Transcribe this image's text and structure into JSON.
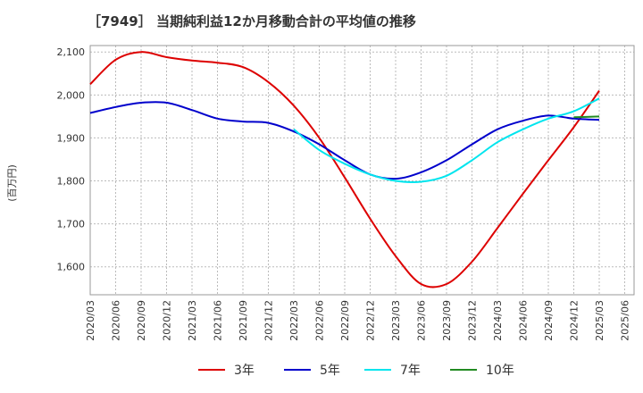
{
  "chart_data": {
    "type": "line",
    "title": "［7949］ 当期純利益12か月移動合計の平均値の推移",
    "ylabel": "(百万円)",
    "xlabel": "",
    "ylim": [
      1535,
      2115
    ],
    "yticks": [
      1600,
      1700,
      1800,
      1900,
      2000,
      2100
    ],
    "ytick_labels": [
      "1,600",
      "1,700",
      "1,800",
      "1,900",
      "2,000",
      "2,100"
    ],
    "x_ticks": [
      "2020/03",
      "2020/06",
      "2020/09",
      "2020/12",
      "2021/03",
      "2021/06",
      "2021/09",
      "2021/12",
      "2022/03",
      "2022/06",
      "2022/09",
      "2022/12",
      "2023/03",
      "2023/06",
      "2023/09",
      "2023/12",
      "2024/03",
      "2024/06",
      "2024/09",
      "2024/12",
      "2025/03",
      "2025/06"
    ],
    "grid": true,
    "legend_position": "bottom",
    "series": [
      {
        "name": "3年",
        "color": "#dd0000",
        "x": [
          "2020/03",
          "2020/06",
          "2020/09",
          "2020/12",
          "2021/03",
          "2021/06",
          "2021/09",
          "2021/12",
          "2022/03",
          "2022/06",
          "2022/09",
          "2022/12",
          "2023/03",
          "2023/06",
          "2023/09",
          "2023/12",
          "2024/03",
          "2024/06",
          "2024/09",
          "2024/12",
          "2025/03"
        ],
        "values": [
          2025,
          2082,
          2100,
          2088,
          2080,
          2075,
          2065,
          2030,
          1975,
          1900,
          1808,
          1712,
          1625,
          1560,
          1560,
          1612,
          1690,
          1770,
          1848,
          1925,
          2010
        ]
      },
      {
        "name": "5年",
        "color": "#0000cc",
        "x": [
          "2020/03",
          "2020/06",
          "2020/09",
          "2020/12",
          "2021/03",
          "2021/06",
          "2021/09",
          "2021/12",
          "2022/03",
          "2022/06",
          "2022/09",
          "2022/12",
          "2023/03",
          "2023/06",
          "2023/09",
          "2023/12",
          "2024/03",
          "2024/06",
          "2024/09",
          "2024/12",
          "2025/03"
        ],
        "values": [
          1958,
          1972,
          1982,
          1982,
          1965,
          1945,
          1938,
          1935,
          1915,
          1885,
          1848,
          1815,
          1805,
          1820,
          1848,
          1885,
          1920,
          1940,
          1952,
          1945,
          1942
        ]
      },
      {
        "name": "7年",
        "color": "#00e5ee",
        "x": [
          "2022/03",
          "2022/06",
          "2022/09",
          "2022/12",
          "2023/03",
          "2023/06",
          "2023/09",
          "2023/12",
          "2024/03",
          "2024/06",
          "2024/09",
          "2024/12",
          "2025/03"
        ],
        "values": [
          1920,
          1872,
          1840,
          1815,
          1800,
          1798,
          1812,
          1848,
          1890,
          1920,
          1945,
          1962,
          1992
        ]
      },
      {
        "name": "10年",
        "color": "#228b22",
        "x": [
          "2024/12",
          "2025/03"
        ],
        "values": [
          1948,
          1950
        ]
      }
    ]
  }
}
